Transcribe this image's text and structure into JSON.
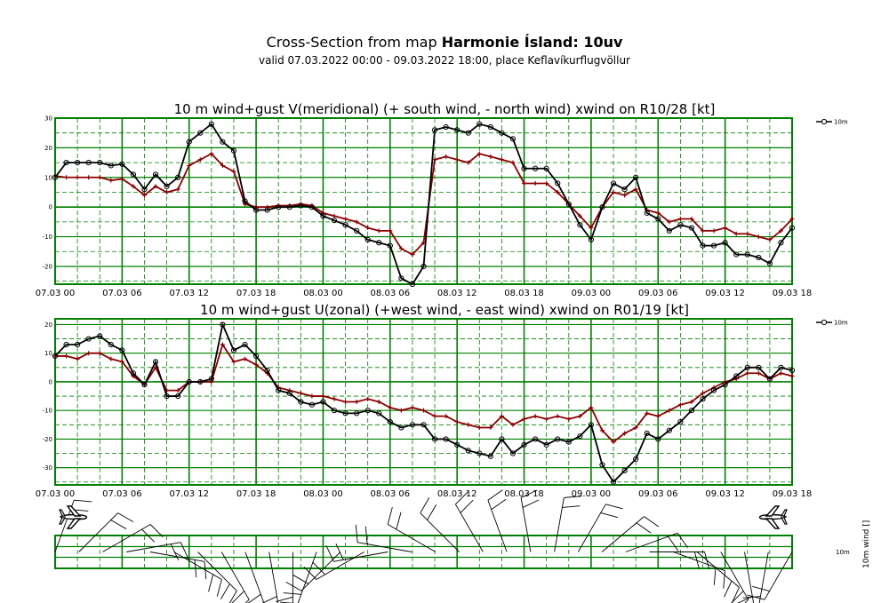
{
  "header": {
    "title_prefix": "Cross-Section from map ",
    "title_bold": "Harmonie Ísland: 10uv",
    "subtitle": "valid 07.03.2022 00:00 - 09.03.2022 18:00, place Keflavíkurflugvöllur"
  },
  "colors": {
    "wind": "#000000",
    "gust": "#8b0000",
    "grid": "#008000"
  },
  "x_ticks": [
    "07.03 00",
    "07.03 06",
    "07.03 12",
    "07.03 18",
    "08.03 00",
    "08.03 06",
    "08.03 12",
    "08.03 18",
    "09.03 00",
    "09.03 06",
    "09.03 12",
    "09.03 18"
  ],
  "chart_data": [
    {
      "type": "line",
      "title": "10 m wind+gust V(meridional) (+ south wind, - north wind) xwind on R10/28 [kt]",
      "ylim": [
        -26,
        30
      ],
      "yticks": [
        30,
        20,
        10,
        0,
        -10,
        -20
      ],
      "x_hours": [
        0,
        1,
        2,
        3,
        4,
        5,
        6,
        7,
        8,
        9,
        10,
        11,
        12,
        13,
        14,
        15,
        16,
        17,
        18,
        19,
        20,
        21,
        22,
        23,
        24,
        25,
        26,
        27,
        28,
        29,
        30,
        31,
        32,
        33,
        34,
        35,
        36,
        37,
        38,
        39,
        40,
        41,
        42,
        43,
        44,
        45,
        46,
        47,
        48,
        49,
        50,
        51,
        52,
        53,
        54,
        55,
        56,
        57,
        58,
        59,
        60,
        61,
        62,
        63,
        64,
        65,
        66
      ],
      "legend": "10m",
      "series": [
        {
          "role": "wind",
          "values": [
            10,
            15,
            15,
            15,
            15,
            14,
            14.5,
            11,
            6,
            11,
            7,
            10,
            22,
            25,
            28,
            22,
            19,
            2,
            -1,
            -1,
            0,
            0,
            0.5,
            0,
            -3,
            -4.5,
            -6,
            -8,
            -11,
            -12,
            -13,
            -24,
            -26,
            -20,
            26,
            27,
            26,
            25,
            28,
            27,
            25,
            23,
            13,
            13,
            13,
            8,
            1,
            -6,
            -11,
            0,
            8,
            6,
            10,
            -2,
            -4,
            -8,
            -6,
            -7,
            -13,
            -13,
            -12,
            -16,
            -16,
            -17,
            -19,
            -12,
            -7
          ]
        },
        {
          "role": "gust",
          "values": [
            10.5,
            10,
            10,
            10,
            10,
            9,
            9.5,
            7,
            4,
            7,
            5,
            6,
            14,
            16,
            18,
            14,
            12,
            1,
            0,
            0,
            0.5,
            0.5,
            1,
            0.5,
            -2,
            -3,
            -4,
            -5,
            -7,
            -8,
            -8,
            -14,
            -16,
            -12,
            16,
            17,
            16,
            15,
            18,
            17,
            16,
            15,
            8,
            8,
            8,
            5,
            1,
            -3,
            -7,
            0,
            5,
            4,
            6,
            -1,
            -2,
            -5,
            -4,
            -4,
            -8,
            -8,
            -7,
            -9,
            -9,
            -10,
            -11,
            -8,
            -4
          ]
        }
      ]
    },
    {
      "type": "line",
      "title": "10 m wind+gust U(zonal) (+west wind, - east wind) xwind on R01/19 [kt]",
      "ylim": [
        -36,
        22
      ],
      "yticks": [
        20,
        10,
        0,
        -10,
        -20,
        -30
      ],
      "x_hours": [
        0,
        1,
        2,
        3,
        4,
        5,
        6,
        7,
        8,
        9,
        10,
        11,
        12,
        13,
        14,
        15,
        16,
        17,
        18,
        19,
        20,
        21,
        22,
        23,
        24,
        25,
        26,
        27,
        28,
        29,
        30,
        31,
        32,
        33,
        34,
        35,
        36,
        37,
        38,
        39,
        40,
        41,
        42,
        43,
        44,
        45,
        46,
        47,
        48,
        49,
        50,
        51,
        52,
        53,
        54,
        55,
        56,
        57,
        58,
        59,
        60,
        61,
        62,
        63,
        64,
        65,
        66
      ],
      "legend": "10m",
      "series": [
        {
          "role": "wind",
          "values": [
            9,
            13,
            13,
            15,
            16,
            13,
            11,
            3,
            -1,
            7,
            -5,
            -5,
            0,
            0,
            1,
            20,
            11,
            13,
            9,
            4,
            -3,
            -4,
            -7,
            -8,
            -7,
            -10,
            -11,
            -11,
            -10,
            -11,
            -14,
            -16,
            -15,
            -15,
            -20,
            -20,
            -22,
            -24,
            -25,
            -26,
            -20,
            -25,
            -22,
            -20,
            -22,
            -20,
            -21,
            -19,
            -15,
            -29,
            -35,
            -31,
            -27,
            -18,
            -20,
            -17,
            -14,
            -10,
            -6,
            -3,
            -1,
            2,
            5,
            5,
            1,
            5,
            4
          ]
        },
        {
          "role": "gust",
          "values": [
            9,
            9,
            8,
            10,
            10,
            8,
            7,
            2,
            -1,
            5,
            -3,
            -3,
            0,
            0,
            0,
            13,
            7,
            8,
            6,
            3,
            -2,
            -3,
            -4,
            -5,
            -5,
            -6,
            -7,
            -7,
            -6,
            -7,
            -9,
            -10,
            -9,
            -10,
            -12,
            -12,
            -14,
            -15,
            -16,
            -16,
            -12,
            -15,
            -13,
            -12,
            -13,
            -12,
            -13,
            -12,
            -9,
            -17,
            -21,
            -18,
            -16,
            -11,
            -12,
            -10,
            -8,
            -7,
            -4,
            -2,
            0,
            1,
            3,
            3,
            1,
            3,
            2
          ]
        }
      ]
    }
  ],
  "barbs": {
    "legend_label": "10m",
    "param_label": "wind [] ",
    "directions_deg": [
      20,
      45,
      60,
      80,
      100,
      120,
      135,
      150,
      160,
      170,
      180,
      200,
      225,
      240,
      260,
      280,
      300,
      315,
      330,
      340,
      350,
      10,
      30,
      50,
      70,
      90,
      110,
      130,
      150,
      170,
      190,
      210
    ]
  }
}
